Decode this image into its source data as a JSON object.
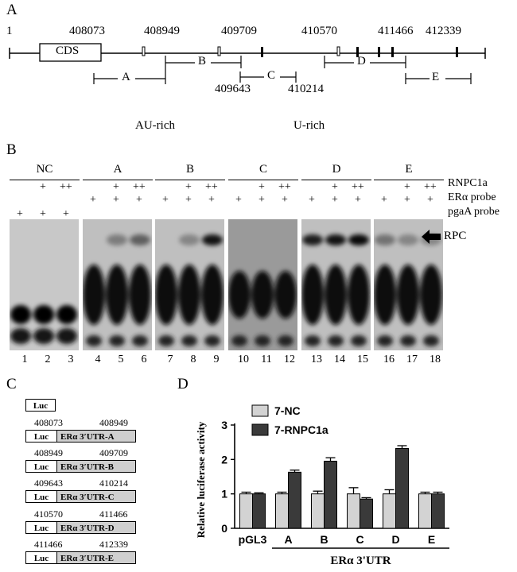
{
  "panel_a": {
    "letter": "A",
    "start": "1",
    "cds": "CDS",
    "top_positions": [
      "408073",
      "408949",
      "409709",
      "410570",
      "411466",
      "412339"
    ],
    "bottom_positions": [
      "409643",
      "410214"
    ],
    "segments": [
      "A",
      "B",
      "C",
      "D",
      "E"
    ],
    "legend_au": "AU-rich",
    "legend_u": "U-rich"
  },
  "panel_b": {
    "letter": "B",
    "groups": [
      "NC",
      "A",
      "B",
      "C",
      "D",
      "E"
    ],
    "row_labels": [
      "RNPC1a",
      "ERα probe",
      "pgaA probe"
    ],
    "rpc_label": "RPC",
    "lanes": [
      "1",
      "2",
      "3",
      "4",
      "5",
      "6",
      "7",
      "8",
      "9",
      "10",
      "11",
      "12",
      "13",
      "14",
      "15",
      "16",
      "17",
      "18"
    ],
    "rnpc_marks": [
      "",
      "+",
      "++"
    ],
    "probe_mark": "+"
  },
  "panel_c": {
    "letter": "C",
    "luc": "Luc",
    "constructs": [
      {
        "label": "ERα 3′UTR-A",
        "start": "408073",
        "end": "408949"
      },
      {
        "label": "ERα 3′UTR-B",
        "start": "408949",
        "end": "409709"
      },
      {
        "label": "ERα 3′UTR-C",
        "start": "409643",
        "end": "410214"
      },
      {
        "label": "ERα 3′UTR-D",
        "start": "410570",
        "end": "411466"
      },
      {
        "label": "ERα 3′UTR-E",
        "start": "411466",
        "end": "412339"
      }
    ]
  },
  "panel_d": {
    "letter": "D",
    "xlabel": "ERα  3'UTR",
    "colors": {
      "nc": "#d3d3d3",
      "rnpc": "#3a3a3a"
    }
  },
  "chart_data": {
    "type": "bar",
    "categories": [
      "pGL3",
      "A",
      "B",
      "C",
      "D",
      "E"
    ],
    "series": [
      {
        "name": "7-NC",
        "values": [
          1.0,
          1.0,
          1.0,
          1.0,
          1.0,
          1.0
        ],
        "errors": [
          0.05,
          0.05,
          0.08,
          0.18,
          0.12,
          0.05
        ]
      },
      {
        "name": "7-RNPC1a",
        "values": [
          1.0,
          1.63,
          1.95,
          0.85,
          2.32,
          1.0
        ],
        "errors": [
          0.03,
          0.06,
          0.1,
          0.04,
          0.08,
          0.05
        ]
      }
    ],
    "ylabel": "Relative luciferase activity",
    "xlabel": "ERα  3'UTR",
    "yticks": [
      "0",
      "1",
      "2",
      "3"
    ],
    "ylim": [
      0,
      3
    ],
    "legend_position": "top-left"
  }
}
